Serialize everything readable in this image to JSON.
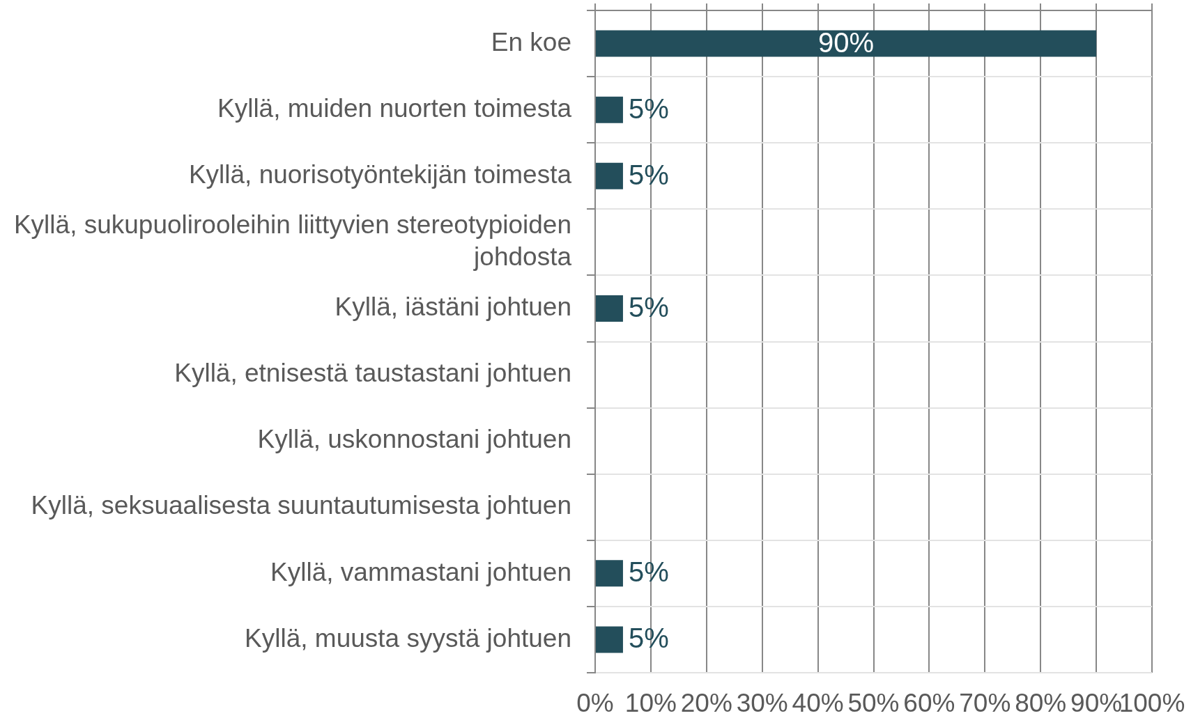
{
  "chart_data": {
    "type": "bar",
    "orientation": "horizontal",
    "categories": [
      "En koe",
      "Kyllä, muiden nuorten toimesta",
      "Kyllä, nuorisotyöntekijän toimesta",
      "Kyllä, sukupuolirooleihin liittyvien stereotypioiden johdosta",
      "Kyllä, iästäni johtuen",
      "Kyllä, etnisestä taustastani johtuen",
      "Kyllä, uskonnostani johtuen",
      "Kyllä, seksuaalisesta suuntautumisesta johtuen",
      "Kyllä, vammastani johtuen",
      "Kyllä, muusta syystä johtuen"
    ],
    "values": [
      90,
      5,
      5,
      0,
      5,
      0,
      0,
      0,
      5,
      5
    ],
    "value_labels": [
      "90%",
      "5%",
      "5%",
      null,
      "5%",
      null,
      null,
      null,
      "5%",
      "5%"
    ],
    "color": "#234e5b",
    "xlim": [
      0,
      100
    ],
    "xticks": [
      {
        "value": 0,
        "label": "0%"
      },
      {
        "value": 10,
        "label": "10%"
      },
      {
        "value": 20,
        "label": "20%"
      },
      {
        "value": 30,
        "label": "30%"
      },
      {
        "value": 40,
        "label": "40%"
      },
      {
        "value": 50,
        "label": "50%"
      },
      {
        "value": 60,
        "label": "60%"
      },
      {
        "value": 70,
        "label": "70%"
      },
      {
        "value": 80,
        "label": "80%"
      },
      {
        "value": 90,
        "label": "90%"
      },
      {
        "value": 100,
        "label": "100%"
      }
    ],
    "grid": true
  }
}
